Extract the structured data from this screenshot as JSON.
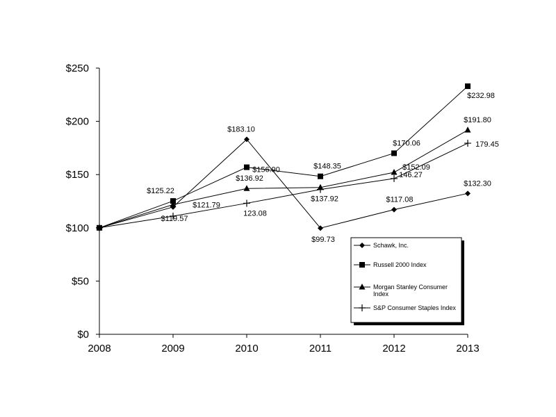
{
  "chart_data": {
    "type": "line",
    "title": "",
    "xlabel": "",
    "ylabel": "",
    "x": [
      "2008",
      "2009",
      "2010",
      "2011",
      "2012",
      "2013"
    ],
    "ylim": [
      0,
      250
    ],
    "y_ticks": [
      "$0",
      "$50",
      "$100",
      "$150",
      "$200",
      "$250"
    ],
    "grid": false,
    "legend_position": "lower-right",
    "series": [
      {
        "name": "Schawk, Inc.",
        "marker": "diamond",
        "values": [
          100,
          119.57,
          183.1,
          99.73,
          117.08,
          132.3
        ],
        "labels": [
          "",
          "$119.57",
          "$183.10",
          "$99.73",
          "$117.08",
          "$132.30"
        ]
      },
      {
        "name": "Russell 2000 Index",
        "marker": "square",
        "values": [
          100,
          125.22,
          156.9,
          148.35,
          170.06,
          232.98
        ],
        "labels": [
          "",
          "$125.22",
          "$156.90",
          "$148.35",
          "$170.06",
          "$232.98"
        ]
      },
      {
        "name": "Morgan Stanley Consumer Index",
        "legend_lines": [
          "Morgan Stanley Consumer",
          "Index"
        ],
        "marker": "triangle",
        "values": [
          100,
          121.79,
          136.92,
          137.92,
          152.09,
          191.8
        ],
        "labels": [
          "",
          "$121.79",
          "$136.92",
          "$137.92",
          "$152.09",
          "$191.80"
        ]
      },
      {
        "name": "S&P Consumer Staples Index",
        "marker": "plus",
        "values": [
          100,
          111.0,
          123.08,
          136.0,
          146.27,
          179.45
        ],
        "labels": [
          "",
          "",
          "123.08",
          "",
          "146.27",
          "179.45"
        ]
      }
    ]
  }
}
